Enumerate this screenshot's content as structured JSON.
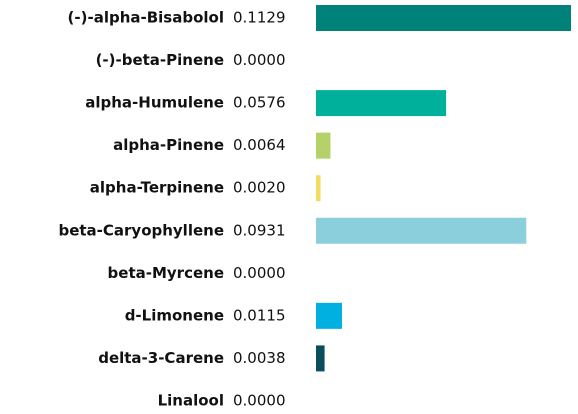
{
  "chart_data": {
    "type": "bar",
    "categories": [
      "(-)-alpha-Bisabolol",
      "(-)-beta-Pinene",
      "alpha-Humulene",
      "alpha-Pinene",
      "alpha-Terpinene",
      "beta-Caryophyllene",
      "beta-Myrcene",
      "d-Limonene",
      "delta-3-Carene",
      "Linalool"
    ],
    "values": [
      0.1129,
      0,
      0.0576,
      0.0064,
      0.002,
      0.0931,
      0,
      0.0115,
      0.0038,
      0
    ],
    "value_labels": [
      "0.1129",
      "0.0000",
      "0.0576",
      "0.0064",
      "0.0020",
      "0.0931",
      "0.0000",
      "0.0115",
      "0.0038",
      "0.0000"
    ],
    "colors": [
      "#00827a",
      "#5aa9a0",
      "#00b09b",
      "#b5d16a",
      "#f2dc5d",
      "#8ccfdc",
      "#7fb8c4",
      "#00b0e0",
      "#0a4d5c",
      "#4a7f8a"
    ]
  }
}
